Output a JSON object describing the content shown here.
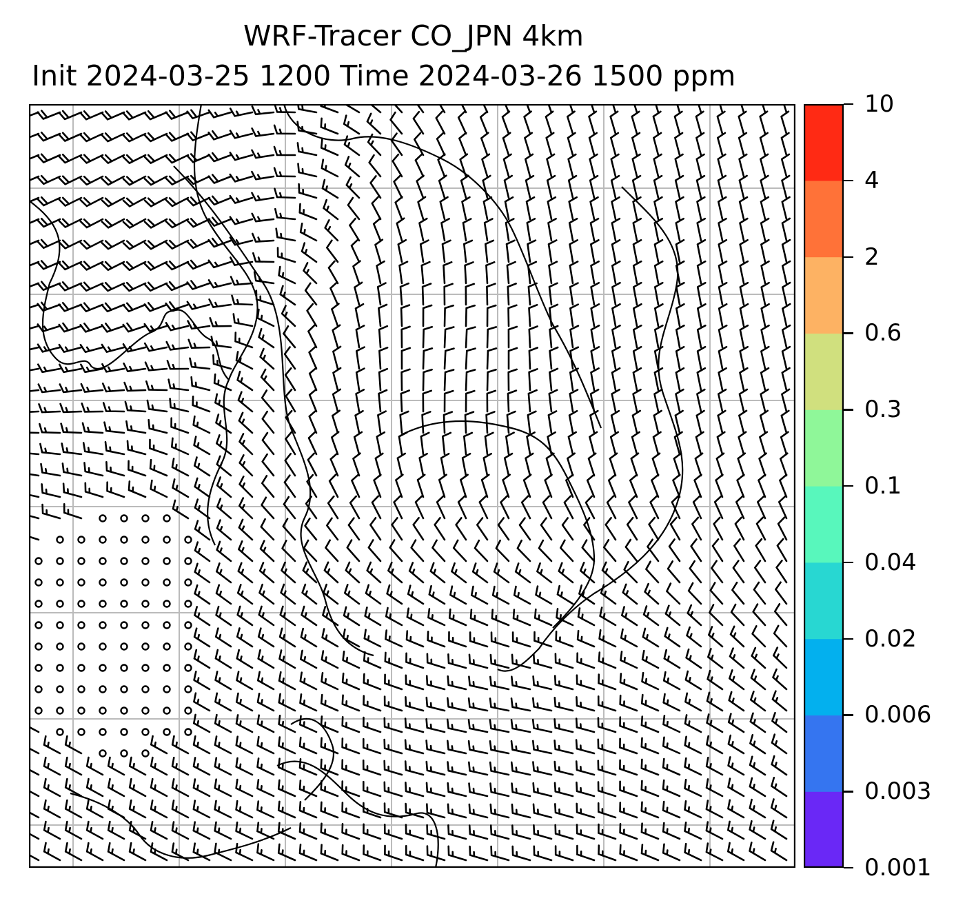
{
  "title": {
    "line1": "WRF-Tracer CO_JPN 4km",
    "line2": "Init 2024-03-25 1200 Time 2024-03-26 1500 ppm"
  },
  "map": {
    "gridlines": true,
    "grid_color": "#bbbbbb",
    "barb_color": "#000000",
    "field": "wind barbs",
    "wind_regions": [
      {
        "name": "west-southwest flow (north-west)",
        "dir_deg": 240,
        "speed_kt": 22
      },
      {
        "name": "north-northwest flow (north-east)",
        "dir_deg": 350,
        "speed_kt": 12
      },
      {
        "name": "northerly flow (center)",
        "dir_deg": 5,
        "speed_kt": 10
      },
      {
        "name": "west-northwest flow (south)",
        "dir_deg": 280,
        "speed_kt": 18
      },
      {
        "name": "calm (south-west)",
        "dir_deg": 0,
        "speed_kt": 0
      }
    ]
  },
  "colorbar": {
    "levels": [
      "0.001",
      "0.003",
      "0.006",
      "0.02",
      "0.04",
      "0.1",
      "0.3",
      "0.6",
      "2",
      "4",
      "10"
    ],
    "colors": [
      "#6a28f6",
      "#3575f0",
      "#03b0ee",
      "#28d7d2",
      "#58f7bc",
      "#8ff799",
      "#d0e07e",
      "#fdb263",
      "#ff7238",
      "#ff2a14"
    ]
  }
}
